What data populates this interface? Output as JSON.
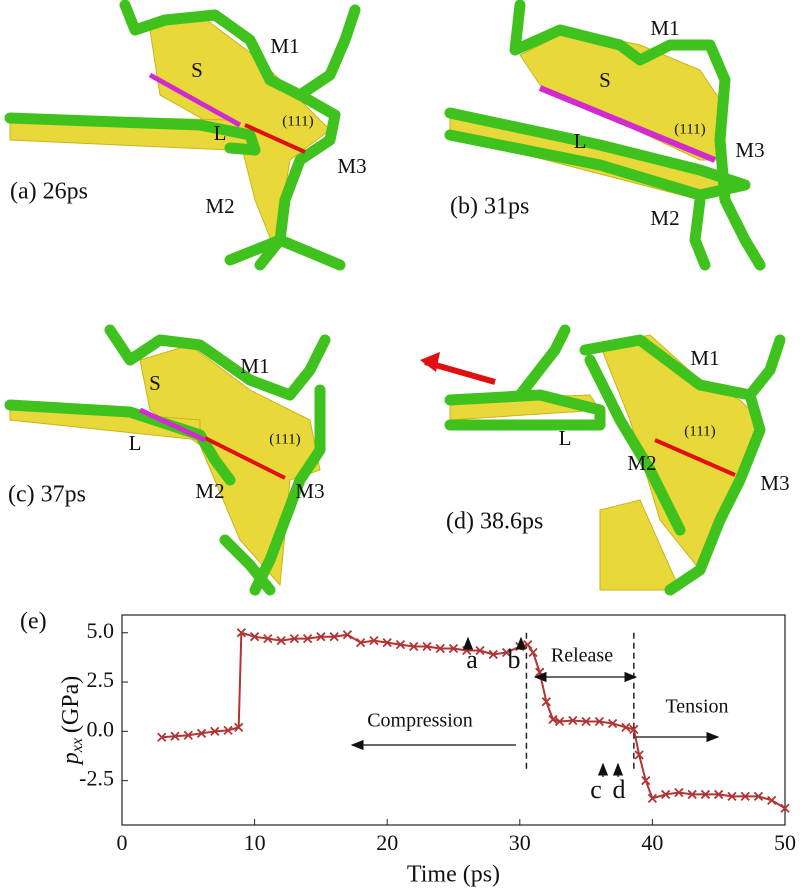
{
  "panels": [
    {
      "caption": "(a) 26ps",
      "labels": [
        "M1",
        "S",
        "L",
        "(111)",
        "M3",
        "M2"
      ]
    },
    {
      "caption": "(b) 31ps",
      "labels": [
        "M1",
        "S",
        "L",
        "(111)",
        "M3",
        "M2"
      ]
    },
    {
      "caption": "(c) 37ps",
      "labels": [
        "M1",
        "S",
        "L",
        "(111)",
        "M3",
        "M2"
      ]
    },
    {
      "caption": "(d) 38.6ps",
      "labels": [
        "M1",
        "L",
        "(111)",
        "M2",
        "M3"
      ]
    }
  ],
  "chart_data": {
    "type": "line",
    "panel_label": "(e)",
    "xlabel": "Time (ps)",
    "ylabel": {
      "symbol": "p",
      "subscript": "xx",
      "unit": "(GPa)"
    },
    "xlim": [
      0,
      50
    ],
    "ylim": [
      -4.75,
      5.9
    ],
    "xticks": [
      0,
      10,
      20,
      30,
      40,
      50
    ],
    "yticks": [
      {
        "value": 5,
        "label": "5.0"
      },
      2.5,
      {
        "value": 0,
        "label": "0.0"
      },
      -2.5
    ],
    "x": [
      3,
      4,
      5,
      6,
      7,
      8,
      8.8,
      9,
      10,
      11,
      12,
      13,
      14,
      15,
      16,
      17,
      18,
      19,
      20,
      21,
      22,
      23,
      24,
      25,
      26,
      27,
      28,
      29,
      30,
      30.6,
      31,
      31.5,
      32,
      32.5,
      33,
      34,
      35,
      36,
      37,
      38,
      38.6,
      39,
      39.5,
      40,
      41,
      42,
      43,
      44,
      45,
      46,
      47,
      48,
      49,
      50
    ],
    "series": [
      {
        "color": "#b03535",
        "values": [
          -0.3,
          -0.25,
          -0.2,
          -0.1,
          0,
          0.05,
          0.2,
          5.0,
          4.8,
          4.7,
          4.6,
          4.7,
          4.7,
          4.8,
          4.8,
          4.9,
          4.5,
          4.6,
          4.5,
          4.4,
          4.3,
          4.3,
          4.2,
          4.2,
          4.1,
          4.1,
          3.9,
          4.0,
          4.3,
          4.4,
          4.0,
          3.0,
          1.5,
          0.6,
          0.5,
          0.55,
          0.5,
          0.5,
          0.4,
          0.2,
          0.1,
          -1.2,
          -2.5,
          -3.4,
          -3.2,
          -3.1,
          -3.2,
          -3.2,
          -3.2,
          -3.3,
          -3.3,
          -3.3,
          -3.5,
          -3.9
        ]
      }
    ],
    "vlines": [
      30.5,
      38.6
    ],
    "annotations": [
      "a",
      "b",
      "c",
      "d",
      "Compression",
      "Release",
      "Tension"
    ]
  }
}
